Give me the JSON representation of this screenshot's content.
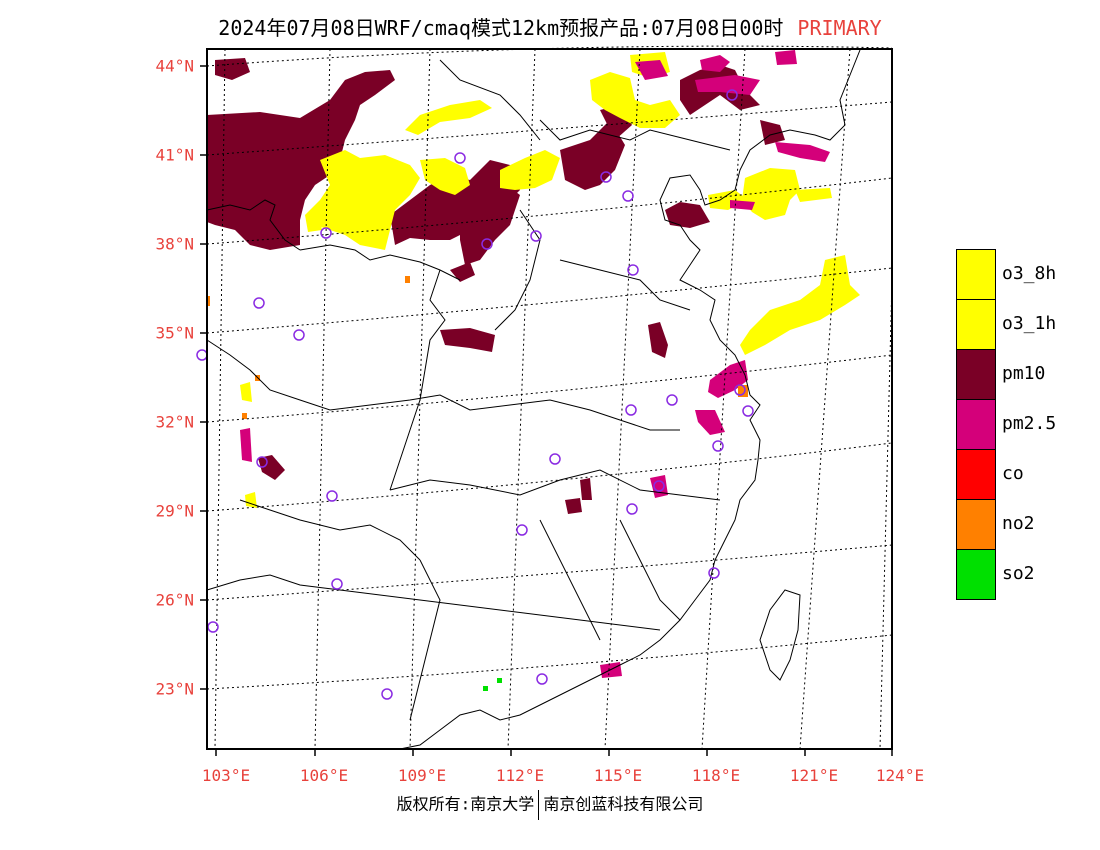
{
  "title": {
    "text": "2024年07月08日WRF/cmaq模式12km预报产品:07月08日00时",
    "mode": "PRIMARY"
  },
  "lat_labels": [
    "44°N",
    "41°N",
    "38°N",
    "35°N",
    "32°N",
    "29°N",
    "26°N",
    "23°N"
  ],
  "lon_labels": [
    "103°E",
    "106°E",
    "109°E",
    "112°E",
    "115°E",
    "118°E",
    "121°E",
    "124°E"
  ],
  "legend": [
    {
      "label": "o3_8h",
      "color": "#ffff00"
    },
    {
      "label": "o3_1h",
      "color": "#ffff00"
    },
    {
      "label": "pm10",
      "color": "#7a0026"
    },
    {
      "label": "pm2.5",
      "color": "#d4007a"
    },
    {
      "label": "co",
      "color": "#ff0000"
    },
    {
      "label": "no2",
      "color": "#ff8000"
    },
    {
      "label": "so2",
      "color": "#00e000"
    }
  ],
  "footer": {
    "left": "版权所有:南京大学",
    "right": "南京创蓝科技有限公司"
  },
  "colors": {
    "accent": "#e8423c",
    "o3": "#ffff00",
    "pm10": "#7a0026",
    "pm25": "#d4007a",
    "no2": "#ff8000",
    "so2": "#00e000",
    "station": "#8a2be2"
  }
}
